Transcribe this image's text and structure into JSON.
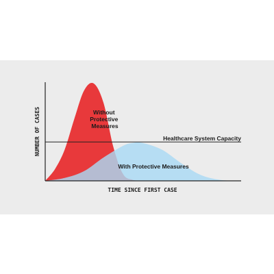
{
  "chart_data": {
    "type": "area",
    "xlabel": "TIME SINCE FIRST CASE",
    "ylabel": "NUMBER OF CASES",
    "grid": false,
    "annotations": {
      "capacity": "Healthcare System Capacity",
      "without": [
        "Without",
        "Protective",
        "Measures"
      ],
      "with": "With Protective Measures"
    },
    "capacity_level": 0.4,
    "series": [
      {
        "label": "Without Protective Measures",
        "color": "#e8393b",
        "x": [
          0,
          0.05,
          0.1,
          0.15,
          0.2,
          0.25,
          0.3,
          0.35,
          0.4,
          0.45,
          0.5
        ],
        "y": [
          0,
          0.12,
          0.32,
          0.64,
          0.93,
          1.0,
          0.8,
          0.35,
          0.07,
          0.01,
          0
        ]
      },
      {
        "label": "With Protective Measures",
        "color": "#aad9f4",
        "x": [
          0,
          0.1,
          0.2,
          0.3,
          0.4,
          0.45,
          0.5,
          0.6,
          0.7,
          0.8,
          0.9,
          1.0
        ],
        "y": [
          0,
          0.03,
          0.1,
          0.24,
          0.36,
          0.39,
          0.39,
          0.32,
          0.18,
          0.06,
          0.01,
          0
        ]
      }
    ]
  }
}
